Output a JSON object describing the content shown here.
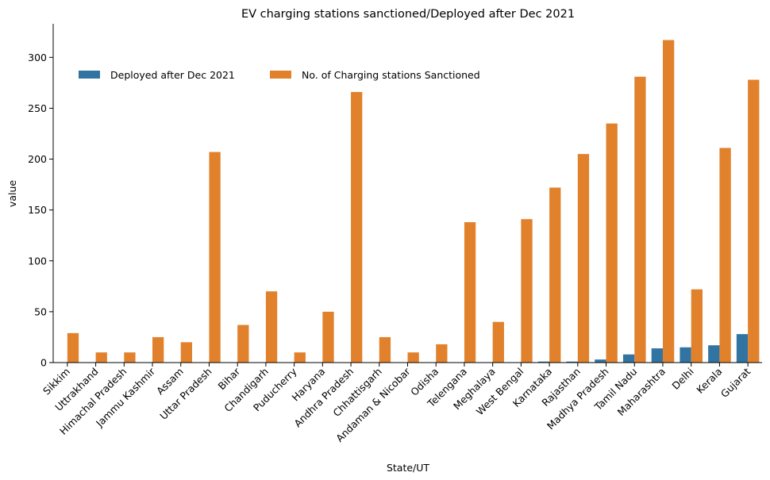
{
  "chart_data": {
    "type": "bar",
    "title": "EV charging stations sanctioned/Deployed after Dec 2021",
    "xlabel": "State/UT",
    "ylabel": "value",
    "ylim": [
      0,
      333
    ],
    "yticks": [
      0,
      50,
      100,
      150,
      200,
      250,
      300
    ],
    "legend_position": "top-left",
    "grid": false,
    "categories": [
      "Sikkim",
      "Uttrakhand",
      "Himachal Pradesh",
      "Jammu Kashmir",
      "Assam",
      "Uttar Pradesh",
      "Bihar",
      "Chandigarh",
      "Puducherry",
      "Haryana",
      "Andhra Pradesh",
      "Chhattisgarh",
      "Andaman & Nicobar",
      "Odisha",
      "Telengana",
      "Meghalaya",
      "West Bengal",
      "Karnataka",
      "Rajasthan",
      "Madhya Pradesh",
      "Tamil Nadu",
      "Maharashtra",
      "Delhi",
      "Kerala",
      "Gujarat"
    ],
    "series": [
      {
        "name": "Deployed after Dec 2021",
        "color": "#3274a1",
        "values": [
          0,
          0,
          0,
          0,
          0,
          0,
          0,
          0,
          0,
          0,
          0,
          0,
          0,
          0,
          0,
          0,
          0,
          1,
          1,
          3,
          8,
          14,
          15,
          17,
          28
        ]
      },
      {
        "name": "No. of Charging stations Sanctioned",
        "color": "#e1812c",
        "values": [
          29,
          10,
          10,
          25,
          20,
          207,
          37,
          70,
          10,
          50,
          266,
          25,
          10,
          18,
          138,
          40,
          141,
          172,
          205,
          235,
          281,
          317,
          72,
          211,
          278
        ]
      }
    ]
  }
}
